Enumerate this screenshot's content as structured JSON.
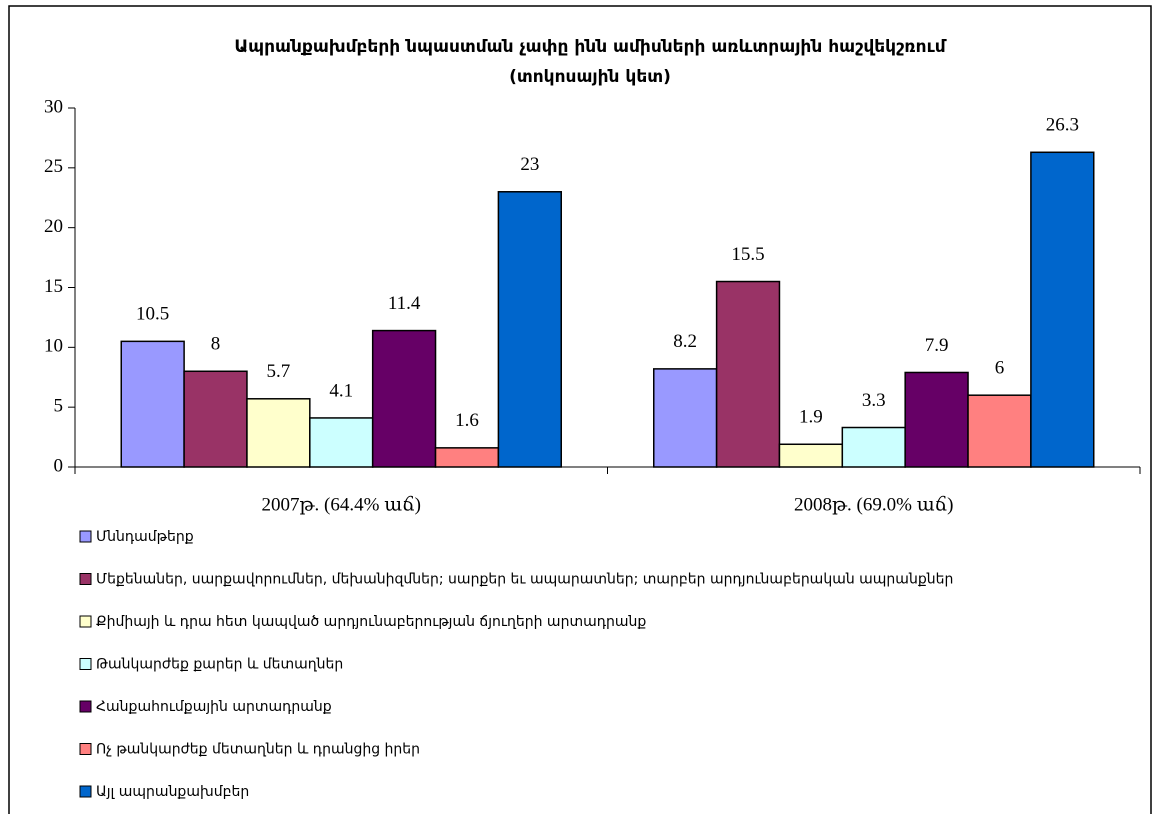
{
  "chart_data": {
    "type": "bar",
    "title": "Ապրանքախմբերի նպաստման չափը ինն ամիսների առևտրային հաշվեկշռում",
    "subtitle": "(տոկոսային կետ)",
    "categories": [
      "2007թ. (64.4% աճ)",
      "2008թ. (69.0% աճ)"
    ],
    "series": [
      {
        "name": "Մննդամթերք",
        "color": "#9999ff",
        "values": [
          10.5,
          8.2
        ]
      },
      {
        "name": "Մեքենաներ, սարքավորումներ, մեխանիզմներ; սարքեր եւ ապարատներ; տարբեր արդյունաբերական ապրանքներ",
        "color": "#993366",
        "values": [
          8,
          15.5
        ]
      },
      {
        "name": "Քիմիայի և դրա հետ կապված  արդյունաբերության ճյուղերի արտադրանք",
        "color": "#ffffcc",
        "values": [
          5.7,
          1.9
        ]
      },
      {
        "name": "Թանկարժեք քարեր և մետաղներ",
        "color": "#ccffff",
        "values": [
          4.1,
          3.3
        ]
      },
      {
        "name": "Հանքահումքային արտադրանք",
        "color": "#660066",
        "values": [
          11.4,
          7.9
        ]
      },
      {
        "name": "Ոչ թանկարժեք մետաղներ և դրանցից իրեր",
        "color": "#ff8080",
        "values": [
          1.6,
          6
        ]
      },
      {
        "name": "Այլ ապրանքախմբեր",
        "color": "#0066cc",
        "values": [
          23,
          26.3
        ]
      }
    ],
    "ylim": [
      0,
      30
    ],
    "yticks": [
      0,
      5,
      10,
      15,
      20,
      25,
      30
    ],
    "legend": "bottom"
  }
}
